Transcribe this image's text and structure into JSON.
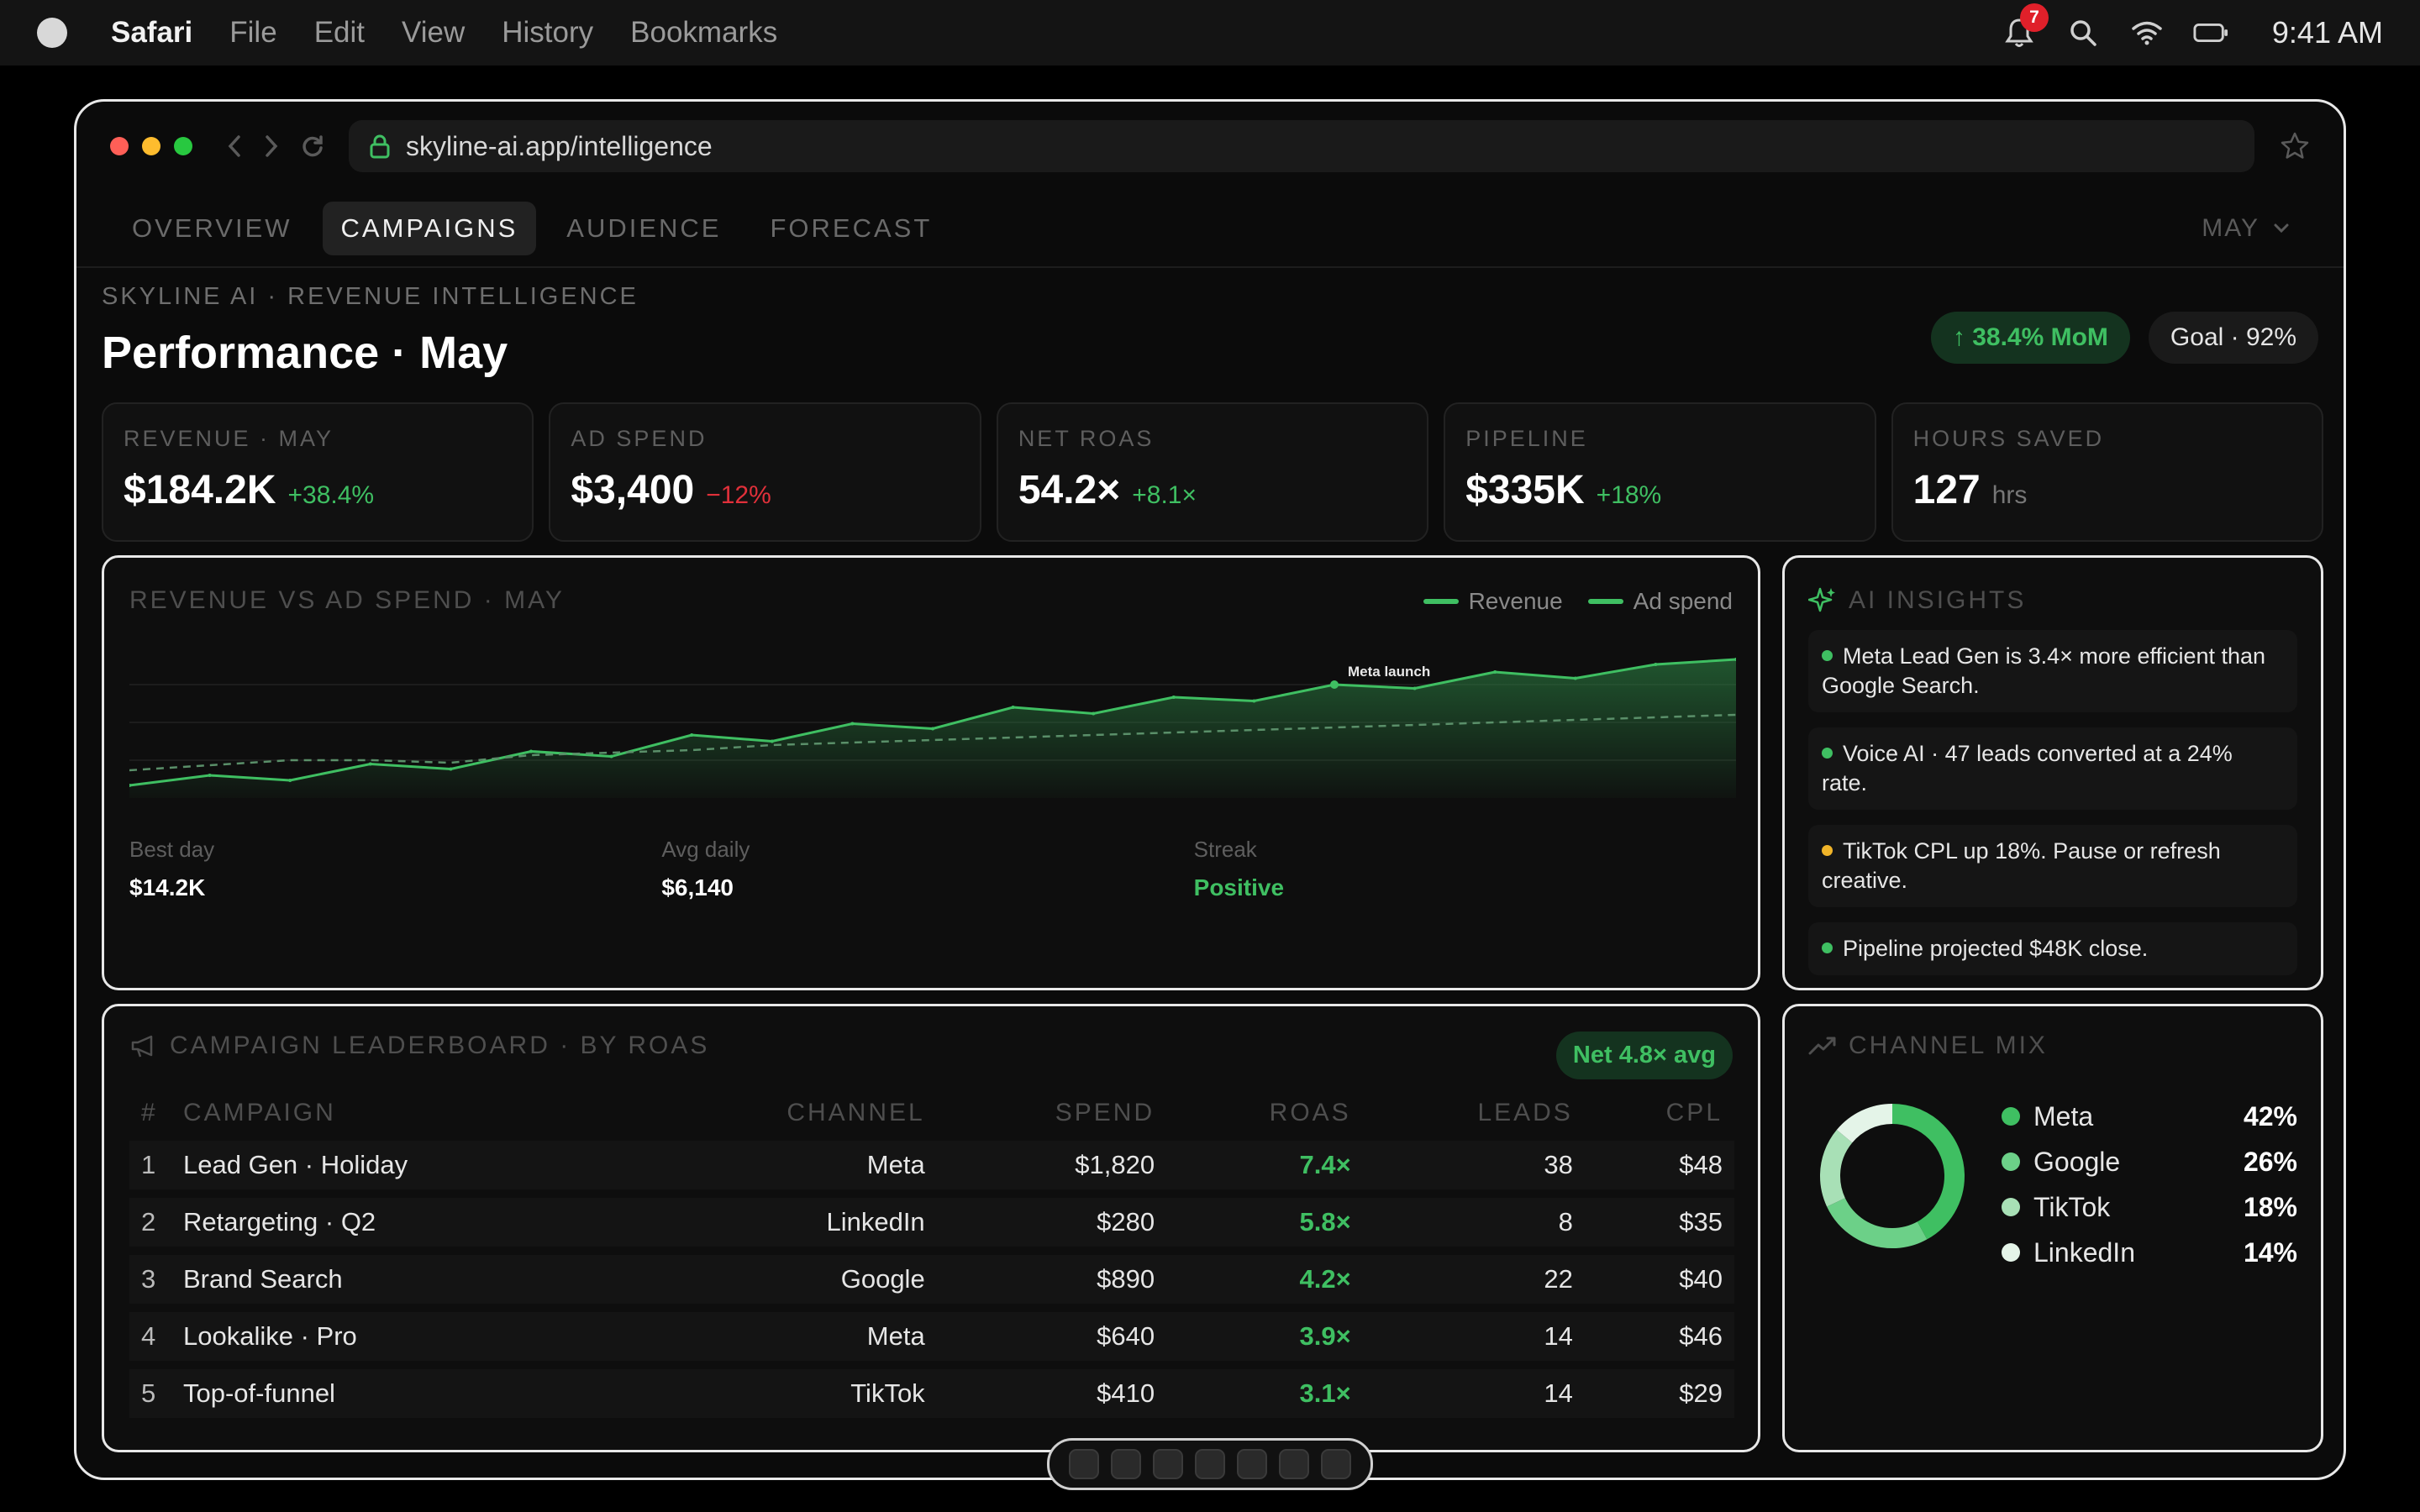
{
  "menubar": {
    "app": "Safari",
    "items": [
      "File",
      "Edit",
      "View",
      "History",
      "Bookmarks"
    ],
    "notification_count": "7",
    "clock": "9:41 AM"
  },
  "browser": {
    "url": "skyline-ai.app/intelligence"
  },
  "tabs": [
    "OVERVIEW",
    "CAMPAIGNS",
    "AUDIENCE",
    "FORECAST"
  ],
  "active_tab": "CAMPAIGNS",
  "month_select": "MAY",
  "header": {
    "eyebrow": "SKYLINE AI · REVENUE INTELLIGENCE",
    "title": "Performance · May",
    "mom_pill": "↑ 38.4% MoM",
    "goal_pill": "Goal · 92%"
  },
  "kpis": [
    {
      "label": "REVENUE · MAY",
      "value": "$184.2K",
      "delta": "+38.4%",
      "tone": "up"
    },
    {
      "label": "AD SPEND",
      "value": "$3,400",
      "delta": "−12%",
      "tone": "down"
    },
    {
      "label": "NET ROAS",
      "value": "54.2×",
      "delta": "+8.1×",
      "tone": "up"
    },
    {
      "label": "PIPELINE",
      "value": "$335K",
      "delta": "+18%",
      "tone": "up"
    },
    {
      "label": "HOURS SAVED",
      "value": "127",
      "delta": "hrs",
      "tone": "unit"
    }
  ],
  "revenue_chart": {
    "title": "REVENUE VS AD SPEND · MAY",
    "legend": [
      "Revenue",
      "Ad spend"
    ],
    "annotation": "Meta launch",
    "stats": [
      {
        "label": "Best day",
        "value": "$14.2K",
        "tone": "plain"
      },
      {
        "label": "Avg daily",
        "value": "$6,140",
        "tone": "plain"
      },
      {
        "label": "Streak",
        "value": "Positive",
        "tone": "green"
      }
    ]
  },
  "chart_data": {
    "type": "area",
    "title": "REVENUE VS AD SPEND · MAY",
    "x": [
      1,
      2,
      3,
      4,
      5,
      6,
      7,
      8,
      9,
      10,
      11,
      12,
      13,
      14,
      15,
      16,
      17,
      18,
      19,
      20,
      21
    ],
    "series": [
      {
        "name": "Revenue",
        "values": [
          10,
          18,
          14,
          27,
          23,
          37,
          33,
          50,
          45,
          59,
          55,
          72,
          67,
          80,
          77,
          90,
          87,
          100,
          95,
          106,
          110
        ]
      },
      {
        "name": "Ad spend",
        "values": [
          22,
          26,
          30,
          30,
          28,
          34,
          36,
          38,
          42,
          44,
          46,
          48,
          50,
          52,
          54,
          56,
          58,
          60,
          62,
          64,
          66
        ]
      }
    ],
    "ylim": [
      0,
      120
    ],
    "grid": true,
    "legend_position": "top-right",
    "annotations": [
      {
        "x": 16,
        "label": "Meta launch"
      }
    ]
  },
  "insights": {
    "title": "AI INSIGHTS",
    "items": [
      {
        "text": "Meta Lead Gen is 3.4× more efficient than Google Search.",
        "color": "#3fbf62"
      },
      {
        "text": "Voice AI · 47 leads converted at a 24% rate.",
        "color": "#3fbf62"
      },
      {
        "text": "TikTok CPL up 18%. Pause or refresh creative.",
        "color": "#f0b429"
      },
      {
        "text": "Pipeline projected $48K close.",
        "color": "#3fbf62"
      }
    ]
  },
  "leaderboard": {
    "title": "CAMPAIGN LEADERBOARD · BY ROAS",
    "net_pill": "Net 4.8× avg",
    "columns": [
      "#",
      "CAMPAIGN",
      "CHANNEL",
      "SPEND",
      "ROAS",
      "LEADS",
      "CPL"
    ],
    "rows": [
      [
        "1",
        "Lead Gen · Holiday",
        "Meta",
        "$1,820",
        "7.4×",
        "38",
        "$48"
      ],
      [
        "2",
        "Retargeting · Q2",
        "LinkedIn",
        "$280",
        "5.8×",
        "8",
        "$35"
      ],
      [
        "3",
        "Brand Search",
        "Google",
        "$890",
        "4.2×",
        "22",
        "$40"
      ],
      [
        "4",
        "Lookalike · Pro",
        "Meta",
        "$640",
        "3.9×",
        "14",
        "$46"
      ],
      [
        "5",
        "Top-of-funnel",
        "TikTok",
        "$410",
        "3.1×",
        "14",
        "$29"
      ]
    ]
  },
  "channel_mix": {
    "title": "CHANNEL MIX",
    "items": [
      {
        "name": "Meta",
        "pct": "42%",
        "value": 42,
        "color": "#3fbf62"
      },
      {
        "name": "Google",
        "pct": "26%",
        "value": 26,
        "color": "#6cd088"
      },
      {
        "name": "TikTok",
        "pct": "18%",
        "value": 18,
        "color": "#a8e0b6"
      },
      {
        "name": "LinkedIn",
        "pct": "14%",
        "value": 14,
        "color": "#e4f4e8"
      }
    ]
  },
  "colors": {
    "accent": "#3fbf62",
    "negative": "#e0303a",
    "warning": "#f0b429",
    "traffic_red": "#ff5f57",
    "traffic_yellow": "#febc2e",
    "traffic_green": "#28c840"
  }
}
